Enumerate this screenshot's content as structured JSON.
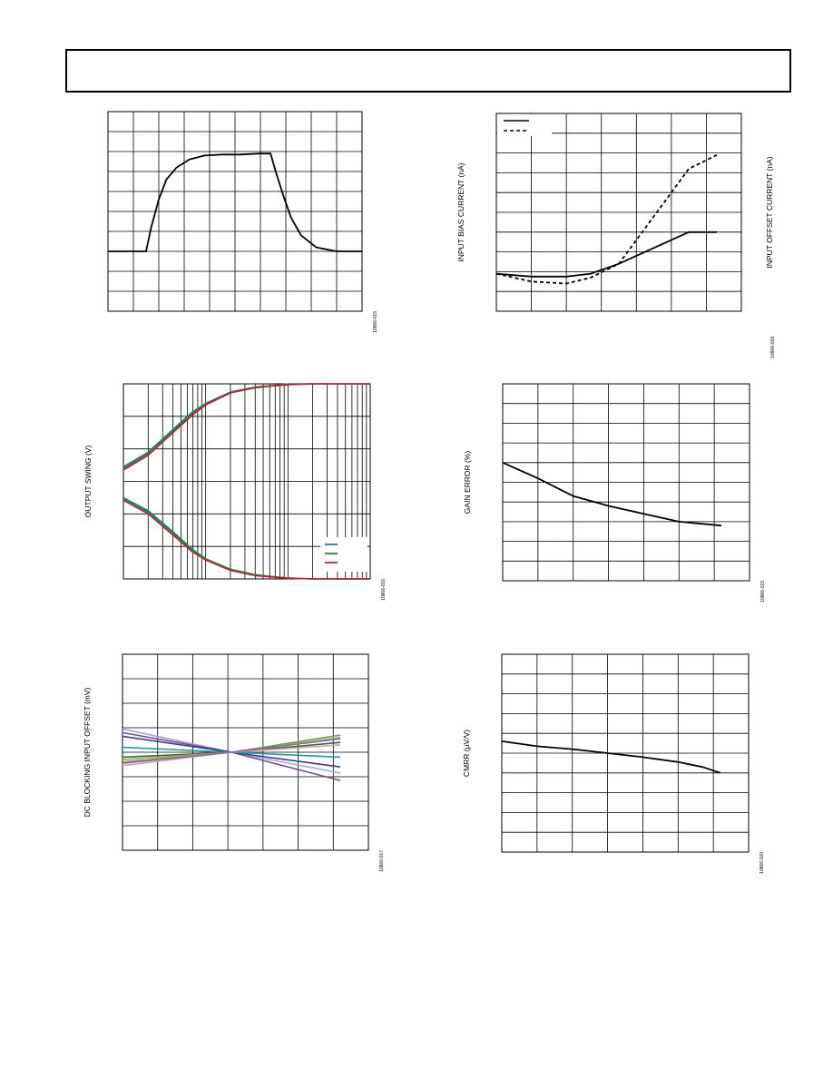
{
  "header": {
    "text": ""
  },
  "chart_data": [
    {
      "id": "c1",
      "type": "line",
      "title": "",
      "xlabel": "",
      "ylabel": "",
      "y2label": "",
      "figure_code": "10866-015",
      "xlim": [
        0,
        10
      ],
      "ylim": [
        0,
        10
      ],
      "grid": true,
      "series": [
        {
          "name": "",
          "color": "#000000",
          "dash": "",
          "x": [
            0,
            0.8,
            1.5,
            1.7,
            2.0,
            2.3,
            2.7,
            3.2,
            3.8,
            4.5,
            5.2,
            6.0,
            6.4,
            6.6,
            6.9,
            7.2,
            7.6,
            8.2,
            9.0,
            10.0
          ],
          "y": [
            3.0,
            3.0,
            3.0,
            4.2,
            5.6,
            6.6,
            7.2,
            7.6,
            7.8,
            7.85,
            7.85,
            7.9,
            7.9,
            7.0,
            5.8,
            4.7,
            3.8,
            3.2,
            3.0,
            3.0
          ]
        }
      ]
    },
    {
      "id": "c2",
      "type": "line",
      "title": "",
      "xlabel": "",
      "ylabel": "INPUT BIAS CURRENT (nA)",
      "y2label": "INPUT OFFSET CURRENT (nA)",
      "figure_code": "10866-018",
      "xlim": [
        0,
        7
      ],
      "ylim": [
        0,
        10
      ],
      "grid": true,
      "legend": "top-left",
      "series": [
        {
          "name": "",
          "color": "#000000",
          "dash": "",
          "x": [
            0,
            1,
            2,
            2.7,
            3.5,
            4.5,
            5.5,
            6.3
          ],
          "y": [
            1.9,
            1.75,
            1.75,
            1.9,
            2.4,
            3.2,
            4.0,
            4.0
          ]
        },
        {
          "name": "",
          "color": "#000000",
          "dash": "4,3",
          "x": [
            0,
            1,
            2,
            2.7,
            3.5,
            4.5,
            5.5,
            6.3
          ],
          "y": [
            1.9,
            1.5,
            1.4,
            1.7,
            2.4,
            4.8,
            7.2,
            7.9
          ]
        }
      ]
    },
    {
      "id": "c3",
      "type": "line",
      "title": "",
      "xlabel": "",
      "ylabel": "OUTPUT SWING (V)",
      "y2label": "",
      "figure_code": "10866-016",
      "xscale": "log",
      "xlim": [
        1,
        1000
      ],
      "ylim": [
        0,
        6
      ],
      "grid": true,
      "legend": "bottom-right",
      "series": [
        {
          "name": "",
          "color": "#2a7a8c",
          "dash": "",
          "x": [
            1,
            2,
            4,
            7,
            10,
            20,
            40,
            70,
            100,
            200,
            400,
            1000
          ],
          "y": [
            3.45,
            3.9,
            4.6,
            5.15,
            5.4,
            5.75,
            5.9,
            5.95,
            6.0,
            6.0,
            6.0,
            6.0
          ]
        },
        {
          "name": "",
          "color": "#1a8a3a",
          "dash": "",
          "x": [
            1,
            2,
            4,
            7,
            10,
            20,
            40,
            70,
            100,
            200,
            400,
            1000
          ],
          "y": [
            3.4,
            3.85,
            4.55,
            5.1,
            5.38,
            5.73,
            5.9,
            5.95,
            5.98,
            6.0,
            6.0,
            6.0
          ]
        },
        {
          "name": "",
          "color": "#c0203a",
          "dash": "",
          "x": [
            1,
            2,
            4,
            7,
            10,
            20,
            40,
            70,
            100,
            200,
            400,
            1000
          ],
          "y": [
            3.35,
            3.8,
            4.5,
            5.05,
            5.35,
            5.72,
            5.88,
            5.94,
            5.97,
            6.0,
            6.0,
            6.0
          ]
        },
        {
          "name": "",
          "color": "#2a7a8c",
          "dash": "",
          "x": [
            1,
            2,
            4,
            7,
            10,
            20,
            40,
            70,
            100,
            200,
            400,
            1000
          ],
          "y": [
            2.45,
            2.05,
            1.4,
            0.85,
            0.6,
            0.28,
            0.12,
            0.06,
            0.03,
            0.0,
            0.0,
            0.0
          ]
        },
        {
          "name": "",
          "color": "#1a8a3a",
          "dash": "",
          "x": [
            1,
            2,
            4,
            7,
            10,
            20,
            40,
            70,
            100,
            200,
            400,
            1000
          ],
          "y": [
            2.5,
            2.1,
            1.45,
            0.9,
            0.62,
            0.3,
            0.13,
            0.06,
            0.03,
            0.0,
            0.0,
            0.0
          ]
        },
        {
          "name": "",
          "color": "#c0203a",
          "dash": "",
          "x": [
            1,
            2,
            4,
            7,
            10,
            20,
            40,
            70,
            100,
            200,
            400,
            1000
          ],
          "y": [
            2.42,
            2.0,
            1.35,
            0.82,
            0.58,
            0.26,
            0.1,
            0.05,
            0.02,
            0.0,
            0.0,
            0.0
          ]
        }
      ]
    },
    {
      "id": "c4",
      "type": "line",
      "title": "",
      "xlabel": "",
      "ylabel": "GAIN ERROR (%)",
      "y2label": "",
      "figure_code": "10866-019",
      "xlim": [
        0,
        7
      ],
      "ylim": [
        0,
        10
      ],
      "grid": true,
      "series": [
        {
          "name": "",
          "color": "#000000",
          "dash": "",
          "x": [
            0,
            1,
            2,
            3,
            4,
            5,
            6.2
          ],
          "y": [
            6.0,
            5.2,
            4.3,
            3.8,
            3.4,
            3.0,
            2.8
          ]
        }
      ]
    },
    {
      "id": "c5",
      "type": "line",
      "title": "",
      "xlabel": "",
      "ylabel": "DC BLOCKING INPUT OFFSET (mV)",
      "y2label": "",
      "figure_code": "10866-017",
      "xlim": [
        0,
        7
      ],
      "ylim": [
        0,
        8
      ],
      "grid": true,
      "series": [
        {
          "name": "",
          "color": "#9aa8d0",
          "dash": "",
          "x": [
            0,
            3.1,
            6.2
          ],
          "y": [
            4.95,
            4.0,
            3.15
          ]
        },
        {
          "name": "",
          "color": "#7a4a8a",
          "dash": "",
          "x": [
            0,
            3.1,
            6.2
          ],
          "y": [
            4.8,
            4.0,
            2.85
          ]
        },
        {
          "name": "",
          "color": "#3a3a9a",
          "dash": "",
          "x": [
            0,
            3.1,
            6.2
          ],
          "y": [
            4.65,
            4.0,
            3.4
          ]
        },
        {
          "name": "",
          "color": "#1a9aaa",
          "dash": "",
          "x": [
            0,
            3.1,
            6.2
          ],
          "y": [
            4.2,
            4.0,
            3.8
          ]
        },
        {
          "name": "",
          "color": "#2a6a3a",
          "dash": "",
          "x": [
            0,
            3.1,
            6.2
          ],
          "y": [
            3.8,
            4.0,
            4.4
          ]
        },
        {
          "name": "",
          "color": "#b0a060",
          "dash": "",
          "x": [
            0,
            3.1,
            6.2
          ],
          "y": [
            3.7,
            4.0,
            4.6
          ]
        },
        {
          "name": "",
          "color": "#6aa040",
          "dash": "",
          "x": [
            0,
            3.1,
            6.2
          ],
          "y": [
            3.6,
            4.0,
            4.7
          ]
        },
        {
          "name": "",
          "color": "#d0a0a0",
          "dash": "",
          "x": [
            0,
            3.1,
            6.2
          ],
          "y": [
            3.45,
            4.0,
            4.3
          ]
        },
        {
          "name": "",
          "color": "#8a6aaa",
          "dash": "",
          "x": [
            0,
            3.1,
            6.2
          ],
          "y": [
            3.55,
            4.0,
            4.55
          ]
        }
      ]
    },
    {
      "id": "c6",
      "type": "line",
      "title": "",
      "xlabel": "",
      "ylabel": "CMRR (µV/V)",
      "y2label": "",
      "figure_code": "10866-020",
      "xlim": [
        0,
        7
      ],
      "ylim": [
        0,
        10
      ],
      "grid": true,
      "series": [
        {
          "name": "",
          "color": "#000000",
          "dash": "",
          "x": [
            0,
            1,
            2,
            3,
            4,
            5,
            5.7,
            6.2
          ],
          "y": [
            5.6,
            5.35,
            5.2,
            5.0,
            4.8,
            4.55,
            4.3,
            4.0
          ]
        }
      ]
    }
  ]
}
